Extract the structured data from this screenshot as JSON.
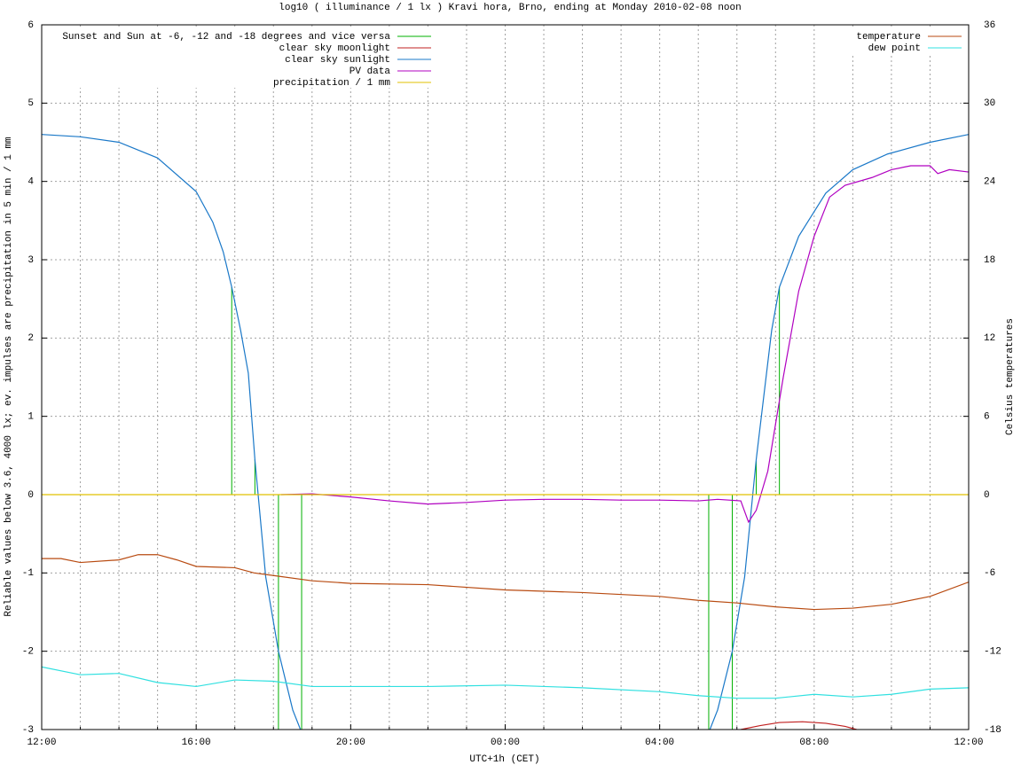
{
  "chart_data": {
    "type": "line",
    "title": "log10 ( illuminance / 1 lx ) Kravi hora, Brno, ending at Monday 2010-02-08 noon",
    "xlabel": "UTC+1h (CET)",
    "ylabel": "Reliable values below 3.6, 4000 lx; ev. impulses are precipitation in 5 min / 1 mm",
    "y2label": "Celsius temperatures",
    "xlim": [
      0,
      24
    ],
    "xticks": [
      {
        "value": 0,
        "label": "12:00"
      },
      {
        "value": 4,
        "label": "16:00"
      },
      {
        "value": 8,
        "label": "20:00"
      },
      {
        "value": 12,
        "label": "00:00"
      },
      {
        "value": 16,
        "label": "04:00"
      },
      {
        "value": 20,
        "label": "08:00"
      },
      {
        "value": 24,
        "label": "12:00"
      }
    ],
    "xminorticks": [
      1,
      2,
      3,
      5,
      6,
      7,
      9,
      10,
      11,
      13,
      14,
      15,
      17,
      18,
      19,
      21,
      22,
      23
    ],
    "ylim": [
      -3,
      6
    ],
    "yticks": [
      -3,
      -2,
      -1,
      0,
      1,
      2,
      3,
      4,
      5,
      6
    ],
    "y2lim": [
      -18,
      36
    ],
    "y2ticks": [
      -18,
      -12,
      -6,
      0,
      6,
      12,
      18,
      24,
      30,
      36
    ],
    "grid": true,
    "legend": "top-left",
    "legend2": "top-right",
    "series": [
      {
        "name": "Sunset and Sun at -6, -12 and -18 degrees and vice versa",
        "color": "#00b000",
        "style": "impulses",
        "x": [
          4.92,
          5.52,
          6.13,
          6.73,
          17.27,
          17.88,
          18.5,
          19.1
        ],
        "values": [
          2.65,
          0.45,
          -3,
          -3,
          -3,
          -3,
          0.45,
          2.65
        ]
      },
      {
        "name": "clear sky moonlight",
        "color": "#c02020",
        "style": "line",
        "x": [
          18.1,
          18.6,
          19.1,
          19.7,
          20.3,
          20.8,
          21.1
        ],
        "values": [
          -3,
          -2.95,
          -2.91,
          -2.9,
          -2.92,
          -2.96,
          -3
        ]
      },
      {
        "name": "clear sky sunlight",
        "color": "#1a78c8",
        "style": "line",
        "x": [
          0,
          1,
          2,
          3,
          4,
          4.43,
          4.7,
          4.92,
          5.15,
          5.35,
          5.52,
          5.8,
          6.13,
          6.5,
          6.7,
          12,
          17.3,
          17.5,
          17.88,
          18.2,
          18.5,
          18.9,
          19.1,
          19.6,
          20.3,
          21,
          21.9,
          23,
          24
        ],
        "values": [
          4.6,
          4.57,
          4.5,
          4.3,
          3.87,
          3.48,
          3.1,
          2.65,
          2.1,
          1.55,
          0.45,
          -1.05,
          -2.0,
          -2.75,
          -3,
          null,
          -3,
          -2.75,
          -2.0,
          -1.05,
          0.45,
          2.1,
          2.65,
          3.3,
          3.85,
          4.15,
          4.35,
          4.5,
          4.6
        ]
      },
      {
        "name": "PV data",
        "color": "#b000c0",
        "style": "line",
        "x": [
          6.2,
          7,
          8,
          9,
          10,
          11,
          12,
          13,
          14,
          15,
          16,
          17,
          17.5,
          18.1,
          18.3,
          18.5,
          18.8,
          19.2,
          19.6,
          20,
          20.4,
          20.8,
          21.5,
          22,
          22.5,
          23,
          23.2,
          23.5,
          24
        ],
        "values": [
          0,
          0.01,
          -0.03,
          -0.08,
          -0.12,
          -0.1,
          -0.07,
          -0.06,
          -0.06,
          -0.07,
          -0.07,
          -0.08,
          -0.06,
          -0.08,
          -0.35,
          -0.2,
          0.3,
          1.5,
          2.6,
          3.3,
          3.8,
          3.95,
          4.05,
          4.15,
          4.2,
          4.2,
          4.1,
          4.15,
          4.12
        ]
      },
      {
        "name": "precipitation / 1 mm",
        "color": "#e0c000",
        "style": "line",
        "x": [
          0,
          24
        ],
        "values": [
          0,
          0
        ]
      },
      {
        "name": "temperature",
        "color": "#b84a10",
        "style": "line",
        "axis": "y2",
        "x": [
          0,
          0.5,
          1,
          2,
          2.5,
          3,
          3.5,
          4,
          5,
          5.5,
          6,
          7,
          8,
          10,
          12,
          14,
          16,
          17,
          18,
          19,
          20,
          21,
          22,
          23,
          24
        ],
        "values": [
          -4.9,
          -4.9,
          -5.2,
          -5.0,
          -4.6,
          -4.6,
          -5.0,
          -5.5,
          -5.6,
          -6.0,
          -6.2,
          -6.6,
          -6.8,
          -6.9,
          -7.3,
          -7.5,
          -7.8,
          -8.1,
          -8.3,
          -8.6,
          -8.8,
          -8.7,
          -8.4,
          -7.8,
          -6.7
        ]
      },
      {
        "name": "dew point",
        "color": "#30e0e0",
        "style": "line",
        "axis": "y2",
        "x": [
          0,
          1,
          2,
          3,
          4,
          5,
          6,
          7,
          8,
          10,
          12,
          14,
          16,
          17,
          18,
          19,
          20,
          21,
          22,
          23,
          24
        ],
        "values": [
          -13.2,
          -13.8,
          -13.7,
          -14.4,
          -14.7,
          -14.2,
          -14.3,
          -14.7,
          -14.7,
          -14.7,
          -14.6,
          -14.8,
          -15.1,
          -15.4,
          -15.6,
          -15.6,
          -15.3,
          -15.5,
          -15.3,
          -14.9,
          -14.8
        ]
      }
    ]
  }
}
